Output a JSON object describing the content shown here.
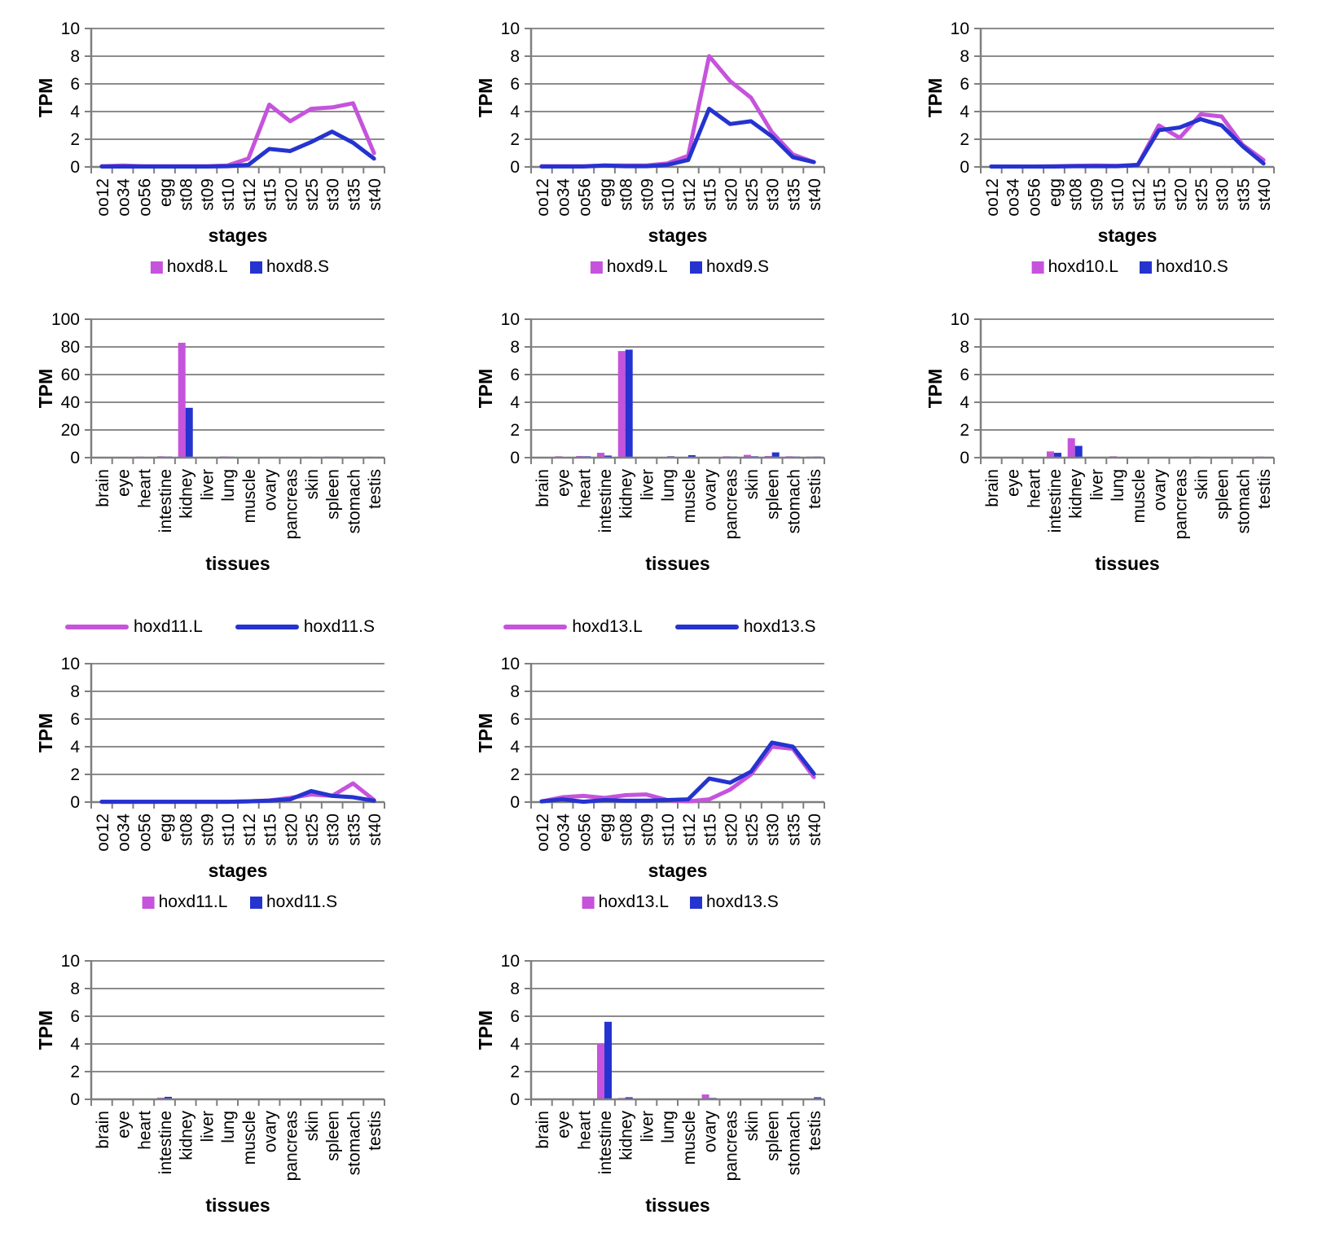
{
  "colors": {
    "L": "#c653dc",
    "S": "#2533cf",
    "grid": "#8c8c8c",
    "axis": "#7f7f7f",
    "text": "#000000",
    "background": "#ffffff"
  },
  "axis_titles": {
    "y": "TPM",
    "stages": "stages",
    "tissues": "tissues"
  },
  "categories": {
    "stages": [
      "oo12",
      "oo34",
      "oo56",
      "egg",
      "st08",
      "st09",
      "st10",
      "st12",
      "st15",
      "st20",
      "st25",
      "st30",
      "st35",
      "st40"
    ],
    "tissues": [
      "brain",
      "eye",
      "heart",
      "intestine",
      "kidney",
      "liver",
      "lung",
      "muscle",
      "ovary",
      "pancreas",
      "skin",
      "spleen",
      "stomach",
      "testis"
    ]
  },
  "standalone_legends": [
    {
      "marker": "line",
      "entries": [
        {
          "label": "hoxd11.L",
          "color": "L"
        },
        {
          "label": "hoxd11.S",
          "color": "S"
        }
      ]
    },
    {
      "marker": "line",
      "entries": [
        {
          "label": "hoxd13.L",
          "color": "L"
        },
        {
          "label": "hoxd13.S",
          "color": "S"
        }
      ]
    }
  ],
  "chart_data": [
    {
      "id": "hoxd8-stages",
      "type": "line",
      "categories_ref": "stages",
      "xlabel": "stages",
      "ylabel": "TPM",
      "ylim": [
        0,
        10
      ],
      "yticks": [
        0,
        2,
        4,
        6,
        8,
        10
      ],
      "grid": true,
      "legend": {
        "marker": "square",
        "position": "bottom"
      },
      "series": [
        {
          "name": "hoxd8.L",
          "color": "L",
          "values": [
            0.05,
            0.1,
            0.05,
            0.05,
            0.05,
            0.05,
            0.1,
            0.6,
            4.5,
            3.3,
            4.2,
            4.3,
            4.6,
            1.0
          ]
        },
        {
          "name": "hoxd8.S",
          "color": "S",
          "values": [
            0.03,
            0.03,
            0.03,
            0.03,
            0.03,
            0.03,
            0.05,
            0.15,
            1.3,
            1.15,
            1.8,
            2.55,
            1.75,
            0.6
          ]
        }
      ]
    },
    {
      "id": "hoxd9-stages",
      "type": "line",
      "categories_ref": "stages",
      "xlabel": "stages",
      "ylabel": "TPM",
      "ylim": [
        0,
        10
      ],
      "yticks": [
        0,
        2,
        4,
        6,
        8,
        10
      ],
      "grid": true,
      "legend": {
        "marker": "square",
        "position": "bottom"
      },
      "series": [
        {
          "name": "hoxd9.L",
          "color": "L",
          "values": [
            0.05,
            0.05,
            0.05,
            0.1,
            0.1,
            0.1,
            0.25,
            0.8,
            8.0,
            6.2,
            5.0,
            2.5,
            0.9,
            0.35
          ]
        },
        {
          "name": "hoxd9.S",
          "color": "S",
          "values": [
            0.03,
            0.03,
            0.03,
            0.1,
            0.05,
            0.05,
            0.15,
            0.5,
            4.2,
            3.1,
            3.3,
            2.2,
            0.7,
            0.35
          ]
        }
      ]
    },
    {
      "id": "hoxd10-stages",
      "type": "line",
      "categories_ref": "stages",
      "xlabel": "stages",
      "ylabel": "TPM",
      "ylim": [
        0,
        10
      ],
      "yticks": [
        0,
        2,
        4,
        6,
        8,
        10
      ],
      "grid": true,
      "legend": {
        "marker": "square",
        "position": "bottom"
      },
      "series": [
        {
          "name": "hoxd10.L",
          "color": "L",
          "values": [
            0.03,
            0.03,
            0.03,
            0.05,
            0.08,
            0.1,
            0.08,
            0.15,
            3.0,
            2.1,
            3.8,
            3.65,
            1.6,
            0.5
          ]
        },
        {
          "name": "hoxd10.S",
          "color": "S",
          "values": [
            0.03,
            0.03,
            0.03,
            0.03,
            0.05,
            0.05,
            0.05,
            0.15,
            2.65,
            2.85,
            3.45,
            3.0,
            1.5,
            0.25
          ]
        }
      ]
    },
    {
      "id": "hoxd8-tissues",
      "type": "bar",
      "categories_ref": "tissues",
      "xlabel": "tissues",
      "ylabel": "TPM",
      "ylim": [
        0,
        100
      ],
      "yticks": [
        0,
        20,
        40,
        60,
        80,
        100
      ],
      "grid": true,
      "legend": null,
      "series": [
        {
          "name": "hoxd8.L",
          "color": "L",
          "values": [
            0.6,
            0.6,
            0.8,
            1.0,
            83,
            0.5,
            0.9,
            0.6,
            0.1,
            0.4,
            0.7,
            0.8,
            0.6,
            0.7
          ]
        },
        {
          "name": "hoxd8.S",
          "color": "S",
          "values": [
            0.5,
            0.4,
            0.6,
            0.8,
            36,
            0.4,
            0.7,
            0.5,
            0.1,
            0.3,
            0.5,
            0.7,
            0.5,
            0.6
          ]
        }
      ]
    },
    {
      "id": "hoxd9-tissues",
      "type": "bar",
      "categories_ref": "tissues",
      "xlabel": "tissues",
      "ylabel": "TPM",
      "ylim": [
        0,
        10
      ],
      "yticks": [
        0,
        2,
        4,
        6,
        8,
        10
      ],
      "grid": true,
      "legend": null,
      "series": [
        {
          "name": "hoxd9.L",
          "color": "L",
          "values": [
            0.05,
            0.1,
            0.12,
            0.35,
            7.7,
            0.02,
            0.05,
            0.05,
            0.02,
            0.1,
            0.2,
            0.12,
            0.1,
            0.08
          ]
        },
        {
          "name": "hoxd9.S",
          "color": "S",
          "values": [
            0.04,
            0.05,
            0.1,
            0.15,
            7.8,
            0.02,
            0.1,
            0.18,
            0.02,
            0.08,
            0.1,
            0.38,
            0.08,
            0.08
          ]
        }
      ]
    },
    {
      "id": "hoxd10-tissues",
      "type": "bar",
      "categories_ref": "tissues",
      "xlabel": "tissues",
      "ylabel": "TPM",
      "ylim": [
        0,
        10
      ],
      "yticks": [
        0,
        2,
        4,
        6,
        8,
        10
      ],
      "grid": true,
      "legend": null,
      "series": [
        {
          "name": "hoxd10.L",
          "color": "L",
          "values": [
            0.02,
            0.02,
            0.03,
            0.45,
            1.4,
            0.02,
            0.1,
            0.02,
            0.02,
            0.02,
            0.08,
            0.03,
            0.03,
            0.08
          ]
        },
        {
          "name": "hoxd10.S",
          "color": "S",
          "values": [
            0.02,
            0.02,
            0.03,
            0.35,
            0.85,
            0.02,
            0.03,
            0.02,
            0.02,
            0.02,
            0.06,
            0.02,
            0.02,
            0.06
          ]
        }
      ]
    },
    {
      "id": "hoxd11-stages",
      "type": "line",
      "categories_ref": "stages",
      "xlabel": "stages",
      "ylabel": "TPM",
      "ylim": [
        0,
        10
      ],
      "yticks": [
        0,
        2,
        4,
        6,
        8,
        10
      ],
      "grid": true,
      "legend": {
        "marker": "square",
        "position": "bottom"
      },
      "series": [
        {
          "name": "hoxd11.L",
          "color": "L",
          "values": [
            0.02,
            0.02,
            0.02,
            0.02,
            0.02,
            0.02,
            0.02,
            0.05,
            0.12,
            0.3,
            0.55,
            0.45,
            1.35,
            0.15
          ]
        },
        {
          "name": "hoxd11.S",
          "color": "S",
          "values": [
            0.02,
            0.02,
            0.02,
            0.02,
            0.02,
            0.02,
            0.02,
            0.05,
            0.1,
            0.2,
            0.8,
            0.45,
            0.35,
            0.1
          ]
        }
      ]
    },
    {
      "id": "hoxd13-stages",
      "type": "line",
      "categories_ref": "stages",
      "xlabel": "stages",
      "ylabel": "TPM",
      "ylim": [
        0,
        10
      ],
      "yticks": [
        0,
        2,
        4,
        6,
        8,
        10
      ],
      "grid": true,
      "legend": {
        "marker": "square",
        "position": "bottom"
      },
      "series": [
        {
          "name": "hoxd13.L",
          "color": "L",
          "values": [
            0.05,
            0.35,
            0.45,
            0.3,
            0.5,
            0.55,
            0.15,
            0.05,
            0.2,
            0.9,
            2.0,
            4.0,
            3.85,
            1.8
          ]
        },
        {
          "name": "hoxd13.S",
          "color": "S",
          "values": [
            0.05,
            0.2,
            0.02,
            0.15,
            0.1,
            0.1,
            0.15,
            0.2,
            1.7,
            1.4,
            2.2,
            4.3,
            4.0,
            2.05
          ]
        }
      ]
    },
    {
      "id": "hoxd11-tissues",
      "type": "bar",
      "categories_ref": "tissues",
      "xlabel": "tissues",
      "ylabel": "TPM",
      "ylim": [
        0,
        10
      ],
      "yticks": [
        0,
        2,
        4,
        6,
        8,
        10
      ],
      "grid": true,
      "legend": null,
      "series": [
        {
          "name": "hoxd11.L",
          "color": "L",
          "values": [
            0,
            0,
            0,
            0.12,
            0,
            0,
            0,
            0,
            0,
            0,
            0,
            0,
            0,
            0
          ]
        },
        {
          "name": "hoxd11.S",
          "color": "S",
          "values": [
            0,
            0,
            0,
            0.18,
            0,
            0,
            0,
            0,
            0,
            0,
            0,
            0,
            0,
            0
          ]
        }
      ]
    },
    {
      "id": "hoxd13-tissues",
      "type": "bar",
      "categories_ref": "tissues",
      "xlabel": "tissues",
      "ylabel": "TPM",
      "ylim": [
        0,
        10
      ],
      "yticks": [
        0,
        2,
        4,
        6,
        8,
        10
      ],
      "grid": true,
      "legend": null,
      "series": [
        {
          "name": "hoxd13.L",
          "color": "L",
          "values": [
            0.02,
            0.02,
            0.05,
            4.0,
            0.1,
            0,
            0.02,
            0.02,
            0.35,
            0.02,
            0.02,
            0.02,
            0.02,
            0.05
          ]
        },
        {
          "name": "hoxd13.S",
          "color": "S",
          "values": [
            0.02,
            0.02,
            0.02,
            5.6,
            0.15,
            0,
            0.02,
            0.02,
            0.1,
            0.02,
            0.02,
            0.02,
            0.02,
            0.15
          ]
        }
      ]
    }
  ]
}
